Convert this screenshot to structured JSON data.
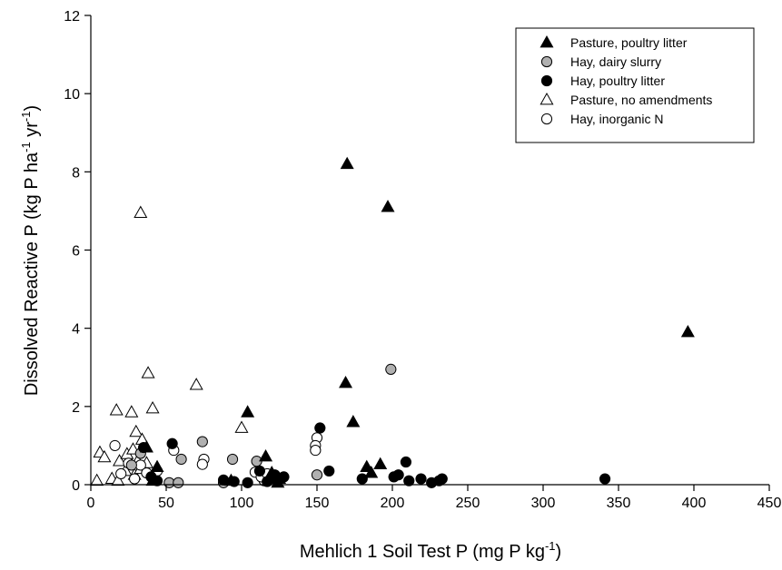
{
  "chart_data": {
    "type": "scatter",
    "xlabel": {
      "main": "Mehlich 1 Soil Test P (mg P kg",
      "sup": "-1",
      "end": ")"
    },
    "ylabel": {
      "main": "Dissolved Reactive P (kg P ha",
      "sup1": "-1",
      "mid": " yr",
      "sup2": "-1",
      "end": ")"
    },
    "xlim": [
      0,
      450
    ],
    "ylim": [
      0,
      12
    ],
    "xticks": [
      "0",
      "50",
      "100",
      "150",
      "200",
      "250",
      "300",
      "350",
      "400",
      "450"
    ],
    "yticks": [
      "0",
      "2",
      "4",
      "6",
      "8",
      "10",
      "12"
    ],
    "grid": false,
    "legend_position": "top-right",
    "series": [
      {
        "name": "Pasture, poultry litter",
        "marker": "triangle",
        "fill": "#000000",
        "points": [
          [
            396,
            3.9
          ],
          [
            170,
            8.2
          ],
          [
            197,
            7.1
          ],
          [
            169,
            2.6
          ],
          [
            174,
            1.6
          ],
          [
            104,
            1.85
          ],
          [
            116,
            0.72
          ],
          [
            183,
            0.45
          ],
          [
            192,
            0.52
          ],
          [
            186,
            0.3
          ],
          [
            120,
            0.3
          ],
          [
            125,
            0.15
          ],
          [
            93,
            0.1
          ],
          [
            44,
            0.45
          ],
          [
            41,
            0.1
          ],
          [
            37,
            0.95
          ],
          [
            124,
            0.05
          ]
        ]
      },
      {
        "name": "Hay, dairy slurry",
        "marker": "circle",
        "fill": "#b0b0b0",
        "points": [
          [
            199,
            2.95
          ],
          [
            74,
            1.1
          ],
          [
            94,
            0.65
          ],
          [
            110,
            0.6
          ],
          [
            150,
            0.25
          ],
          [
            60,
            0.65
          ],
          [
            52,
            0.05
          ],
          [
            58,
            0.05
          ],
          [
            88,
            0.05
          ],
          [
            27,
            0.5
          ],
          [
            33,
            0.8
          ]
        ]
      },
      {
        "name": "Hay, poultry litter",
        "marker": "circle",
        "fill": "#000000",
        "points": [
          [
            152,
            1.45
          ],
          [
            54,
            1.05
          ],
          [
            209,
            0.58
          ],
          [
            158,
            0.35
          ],
          [
            341,
            0.15
          ],
          [
            180,
            0.15
          ],
          [
            201,
            0.2
          ],
          [
            204,
            0.25
          ],
          [
            211,
            0.1
          ],
          [
            219,
            0.15
          ],
          [
            226,
            0.05
          ],
          [
            231,
            0.1
          ],
          [
            233,
            0.15
          ],
          [
            128,
            0.2
          ],
          [
            122,
            0.25
          ],
          [
            104,
            0.05
          ],
          [
            112,
            0.35
          ],
          [
            88,
            0.12
          ],
          [
            95,
            0.08
          ],
          [
            117,
            0.08
          ],
          [
            122,
            0.15
          ],
          [
            40,
            0.2
          ],
          [
            44,
            0.1
          ],
          [
            35,
            0.95
          ]
        ]
      },
      {
        "name": "Pasture, no amendments",
        "marker": "triangle",
        "fill": "#ffffff",
        "points": [
          [
            33,
            6.95
          ],
          [
            38,
            2.85
          ],
          [
            70,
            2.55
          ],
          [
            17,
            1.9
          ],
          [
            27,
            1.85
          ],
          [
            41,
            1.95
          ],
          [
            100,
            1.45
          ],
          [
            30,
            1.35
          ],
          [
            34,
            1.15
          ],
          [
            6,
            0.82
          ],
          [
            9,
            0.7
          ],
          [
            19,
            0.6
          ],
          [
            24,
            0.78
          ],
          [
            28,
            0.9
          ],
          [
            31,
            0.6
          ],
          [
            37,
            0.55
          ],
          [
            23,
            0.35
          ],
          [
            14,
            0.15
          ],
          [
            18,
            0.1
          ],
          [
            4,
            0.1
          ],
          [
            29,
            0.25
          ],
          [
            33,
            0.4
          ],
          [
            42,
            0.25
          ]
        ]
      },
      {
        "name": "Hay, inorganic N",
        "marker": "circle",
        "fill": "#ffffff",
        "points": [
          [
            150,
            1.2
          ],
          [
            149,
            1.0
          ],
          [
            149,
            0.88
          ],
          [
            55,
            0.88
          ],
          [
            16,
            1.0
          ],
          [
            75,
            0.65
          ],
          [
            74,
            0.52
          ],
          [
            25,
            0.55
          ],
          [
            33,
            0.5
          ],
          [
            37,
            0.3
          ],
          [
            20,
            0.28
          ],
          [
            29,
            0.15
          ],
          [
            44,
            0.35
          ],
          [
            115,
            0.1
          ],
          [
            109,
            0.32
          ],
          [
            113,
            0.2
          ],
          [
            117,
            0.28
          ]
        ]
      }
    ]
  }
}
